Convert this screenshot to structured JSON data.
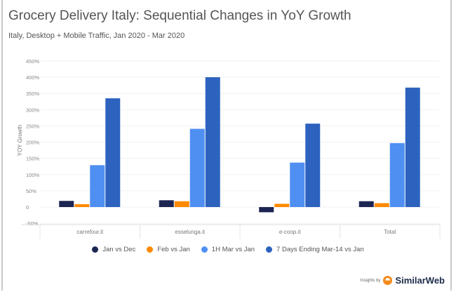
{
  "chart_data": {
    "type": "bar",
    "title": "Grocery Delivery Italy: Sequential Changes in YoY Growth",
    "subtitle": "Italy, Desktop + Mobile Traffic, Jan 2020 - Mar 2020",
    "xlabel": "",
    "ylabel": "YOY Growth",
    "ylim": [
      -50,
      450
    ],
    "yticks": [
      -50,
      0,
      50,
      100,
      150,
      200,
      250,
      300,
      350,
      400,
      450
    ],
    "ytick_labels": [
      "-50%",
      "0",
      "50%",
      "100%",
      "150%",
      "200%",
      "250%",
      "300%",
      "350%",
      "400%",
      "450%"
    ],
    "categories": [
      "carrefour.it",
      "esselunga.it",
      "e-coop.it",
      "Total"
    ],
    "series": [
      {
        "name": "Jan vs Dec",
        "color": "#1c2552",
        "values": [
          19,
          21,
          -16,
          18
        ]
      },
      {
        "name": "Feb vs Jan",
        "color": "#ff8a00",
        "values": [
          9,
          18,
          10,
          12
        ]
      },
      {
        "name": "1H Mar vs Jan",
        "color": "#4f8ff2",
        "values": [
          129,
          241,
          137,
          197
        ]
      },
      {
        "name": "7 Days Ending Mar-14 vs Jan",
        "color": "#2d63bf",
        "values": [
          335,
          400,
          257,
          368
        ]
      }
    ],
    "grid": true,
    "legend_position": "bottom"
  },
  "branding": {
    "prefix": "Insights by",
    "name": "SimilarWeb"
  }
}
